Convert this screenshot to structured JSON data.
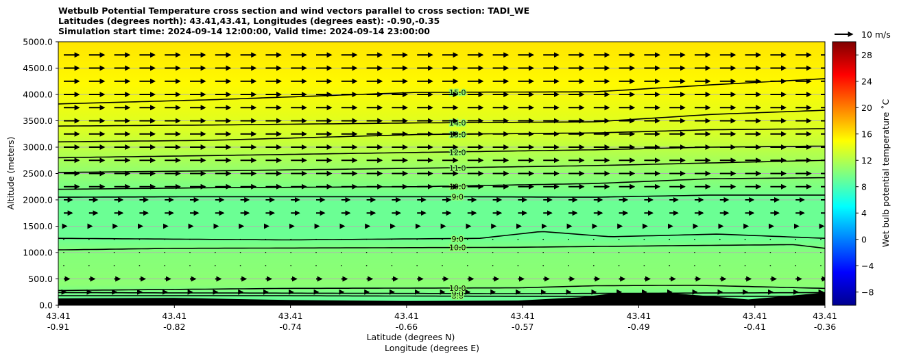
{
  "chart_data": {
    "type": "heatmap",
    "title_lines": [
      "Wetbulb Potential Temperature cross section and wind vectors parallel to cross section: TADI_WE",
      "Latitudes (degrees north): 43.41,43.41, Longitudes (degrees east): -0.90,-0.35",
      "Simulation start time: 2024-09-14 12:00:00, Valid time: 2024-09-14 23:00:00"
    ],
    "ylabel": "Altitude (meters)",
    "xlabel_lines": [
      "Latitude (degrees N)",
      "Longitude (degrees E)"
    ],
    "ylim": [
      0,
      5000
    ],
    "y_ticks": [
      "0.0",
      "500.0",
      "1000.0",
      "1500.0",
      "2000.0",
      "2500.0",
      "3000.0",
      "3500.0",
      "4000.0",
      "4500.0",
      "5000.0"
    ],
    "x_ticks": [
      {
        "lat": "43.41",
        "lon": "-0.91"
      },
      {
        "lat": "43.41",
        "lon": "-0.82"
      },
      {
        "lat": "43.41",
        "lon": "-0.74"
      },
      {
        "lat": "43.41",
        "lon": "-0.66"
      },
      {
        "lat": "43.41",
        "lon": "-0.57"
      },
      {
        "lat": "43.41",
        "lon": "-0.49"
      },
      {
        "lat": "43.41",
        "lon": "-0.41"
      },
      {
        "lat": "43.41",
        "lon": "-0.36"
      }
    ],
    "colorbar": {
      "label": "Wet bulb potential temperature ˚C",
      "range": [
        -10,
        30
      ],
      "ticks": [
        "−8",
        "−4",
        "0",
        "4",
        "8",
        "12",
        "16",
        "20",
        "24",
        "28"
      ]
    },
    "quiver_key": "10 m/s",
    "color_profile": [
      {
        "alt": 0,
        "temp": 8.5
      },
      {
        "alt": 400,
        "temp": 10.5
      },
      {
        "alt": 1000,
        "temp": 10.2
      },
      {
        "alt": 1300,
        "temp": 9.2
      },
      {
        "alt": 2000,
        "temp": 9.2
      },
      {
        "alt": 2600,
        "temp": 11.0
      },
      {
        "alt": 3300,
        "temp": 13.5
      },
      {
        "alt": 4200,
        "temp": 15.2
      },
      {
        "alt": 5000,
        "temp": 16.0
      }
    ],
    "contours": [
      {
        "label": "8.0",
        "points": [
          [
            0,
            180
          ],
          [
            0.3,
            180
          ],
          [
            0.6,
            170
          ],
          [
            1.0,
            170
          ]
        ]
      },
      {
        "label": "9.0",
        "points": [
          [
            0,
            240
          ],
          [
            0.3,
            230
          ],
          [
            0.6,
            220
          ],
          [
            1.0,
            240
          ]
        ]
      },
      {
        "label": "10.0",
        "points": [
          [
            0,
            280
          ],
          [
            0.3,
            320
          ],
          [
            0.6,
            330
          ],
          [
            0.7,
            370
          ],
          [
            0.83,
            380
          ],
          [
            1.0,
            320
          ]
        ]
      },
      {
        "label": "10.0",
        "points": [
          [
            0,
            1050
          ],
          [
            0.15,
            1080
          ],
          [
            0.4,
            1090
          ],
          [
            0.6,
            1100
          ],
          [
            0.8,
            1130
          ],
          [
            0.96,
            1150
          ],
          [
            1.0,
            1080
          ]
        ]
      },
      {
        "label": "9.0",
        "points": [
          [
            0,
            1270
          ],
          [
            0.3,
            1240
          ],
          [
            0.55,
            1270
          ],
          [
            0.63,
            1400
          ],
          [
            0.72,
            1300
          ],
          [
            0.86,
            1350
          ],
          [
            1.0,
            1270
          ]
        ]
      },
      {
        "label": "9.0",
        "points": [
          [
            0,
            2050
          ],
          [
            0.2,
            2060
          ],
          [
            0.5,
            2060
          ],
          [
            0.7,
            2050
          ],
          [
            0.85,
            2090
          ],
          [
            1.0,
            2090
          ]
        ]
      },
      {
        "label": "10.0",
        "points": [
          [
            0,
            2200
          ],
          [
            0.2,
            2230
          ],
          [
            0.47,
            2250
          ],
          [
            0.7,
            2310
          ],
          [
            0.85,
            2400
          ],
          [
            1.0,
            2420
          ]
        ]
      },
      {
        "label": "11.0",
        "points": [
          [
            0,
            2520
          ],
          [
            0.2,
            2550
          ],
          [
            0.47,
            2600
          ],
          [
            0.7,
            2650
          ],
          [
            0.85,
            2700
          ],
          [
            1.0,
            2750
          ]
        ]
      },
      {
        "label": "12.0",
        "points": [
          [
            0,
            2800
          ],
          [
            0.2,
            2840
          ],
          [
            0.47,
            2900
          ],
          [
            0.7,
            2950
          ],
          [
            0.85,
            3000
          ],
          [
            1.0,
            3020
          ]
        ]
      },
      {
        "label": "13.0",
        "points": [
          [
            0,
            3100
          ],
          [
            0.2,
            3130
          ],
          [
            0.47,
            3240
          ],
          [
            0.7,
            3270
          ],
          [
            0.85,
            3330
          ],
          [
            1.0,
            3350
          ]
        ]
      },
      {
        "label": "14.0",
        "points": [
          [
            0,
            3400
          ],
          [
            0.2,
            3420
          ],
          [
            0.47,
            3460
          ],
          [
            0.7,
            3480
          ],
          [
            0.85,
            3620
          ],
          [
            1.0,
            3700
          ]
        ]
      },
      {
        "label": "15.0",
        "points": [
          [
            0,
            3820
          ],
          [
            0.2,
            3900
          ],
          [
            0.47,
            4040
          ],
          [
            0.7,
            4050
          ],
          [
            0.85,
            4180
          ],
          [
            1.0,
            4300
          ]
        ]
      }
    ],
    "terrain": [
      [
        0,
        130
      ],
      [
        0.15,
        140
      ],
      [
        0.3,
        100
      ],
      [
        0.45,
        80
      ],
      [
        0.6,
        90
      ],
      [
        0.68,
        150
      ],
      [
        0.72,
        220
      ],
      [
        0.8,
        230
      ],
      [
        0.9,
        110
      ],
      [
        1.0,
        240
      ]
    ]
  }
}
